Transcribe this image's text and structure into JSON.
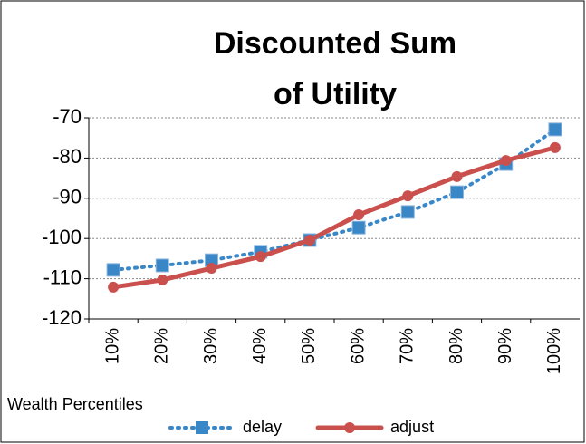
{
  "chart_data": {
    "type": "line",
    "title": [
      "Discounted Sum",
      "of Utility"
    ],
    "x_label": "Wealth Percentiles",
    "categories": [
      "10%",
      "20%",
      "30%",
      "40%",
      "50%",
      "60%",
      "70%",
      "80%",
      "90%",
      "100%"
    ],
    "series": [
      {
        "name": "delay",
        "color": "#3a87c8",
        "marker": "square",
        "dash": "dotted",
        "values": [
          -107.8,
          -106.7,
          -105.4,
          -103.3,
          -100.4,
          -97.3,
          -93.4,
          -88.5,
          -81.5,
          -72.9
        ]
      },
      {
        "name": "adjust",
        "color": "#c9504d",
        "marker": "circle",
        "dash": "solid",
        "values": [
          -112.1,
          -110.3,
          -107.4,
          -104.5,
          -100.4,
          -94.1,
          -89.4,
          -84.6,
          -80.6,
          -77.4
        ]
      }
    ],
    "ylim": [
      -120,
      -70
    ],
    "yticks": [
      -120,
      -110,
      -100,
      -90,
      -80,
      -70
    ],
    "grid": true,
    "legend": "bottom"
  }
}
